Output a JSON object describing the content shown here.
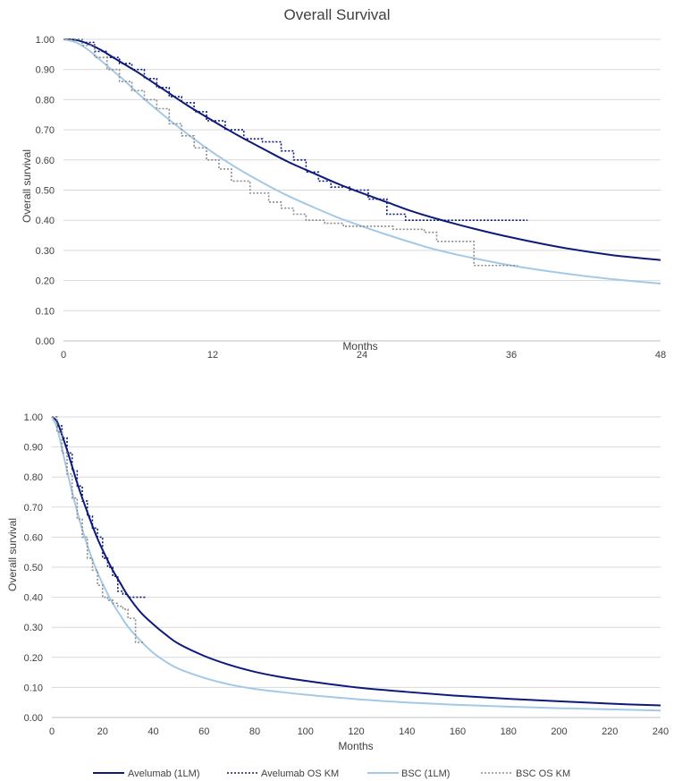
{
  "colors": {
    "avelumab": "#0d1a7a",
    "bsc_curve": "#a4c9e6",
    "bsc_km": "#8c8c8c"
  },
  "legend": {
    "items": [
      {
        "label": "Avelumab (1LM)",
        "style": "solid",
        "color": "#0d1a7a"
      },
      {
        "label": "Avelumab OS KM",
        "style": "dotted",
        "color": "#0d1a7a"
      },
      {
        "label": "BSC (1LM)",
        "style": "solid",
        "color": "#a4c9e6"
      },
      {
        "label": "BSC OS KM",
        "style": "dotted",
        "color": "#8c8c8c"
      }
    ]
  },
  "chart_data": [
    {
      "type": "line",
      "title": "Overall Survival",
      "xlabel": "Months",
      "ylabel": "Overall survival",
      "xlim": [
        0,
        48
      ],
      "ylim": [
        0,
        1
      ],
      "x_ticks": [
        "0",
        "12",
        "24",
        "36",
        "48"
      ],
      "x_tick_values": [
        0,
        12,
        24,
        36,
        48
      ],
      "y_ticks": [
        "0.00",
        "0.10",
        "0.20",
        "0.30",
        "0.40",
        "0.50",
        "0.60",
        "0.70",
        "0.80",
        "0.90",
        "1.00"
      ],
      "grid": true,
      "series": [
        {
          "name": "Avelumab (1LM)",
          "kind": "smooth",
          "x": [
            0,
            1,
            2,
            3,
            4,
            5,
            6,
            8,
            10,
            12,
            14,
            16,
            18,
            20,
            22,
            24,
            26,
            28,
            30,
            33,
            36,
            40,
            44,
            48
          ],
          "y": [
            1.0,
            0.998,
            0.985,
            0.965,
            0.94,
            0.915,
            0.89,
            0.835,
            0.78,
            0.73,
            0.682,
            0.638,
            0.595,
            0.558,
            0.522,
            0.49,
            0.46,
            0.43,
            0.405,
            0.372,
            0.343,
            0.31,
            0.285,
            0.268
          ]
        },
        {
          "name": "Avelumab OS KM",
          "kind": "step",
          "x": [
            0,
            1.5,
            2.5,
            3.5,
            4.5,
            5.5,
            6.5,
            7.5,
            8.5,
            9.5,
            10.5,
            11.5,
            13,
            14.5,
            16,
            17.5,
            18.5,
            19.5,
            20.5,
            21.5,
            23,
            24.5,
            26,
            27.5,
            28.5,
            30,
            32,
            34,
            37.3
          ],
          "y": [
            1.0,
            0.99,
            0.96,
            0.94,
            0.92,
            0.9,
            0.87,
            0.84,
            0.81,
            0.79,
            0.76,
            0.73,
            0.7,
            0.67,
            0.66,
            0.63,
            0.6,
            0.56,
            0.53,
            0.51,
            0.5,
            0.47,
            0.42,
            0.4,
            0.4,
            0.4,
            0.4,
            0.4,
            0.4
          ]
        },
        {
          "name": "BSC (1LM)",
          "kind": "smooth",
          "x": [
            0,
            1,
            2,
            3,
            4,
            5,
            6,
            8,
            10,
            12,
            14,
            16,
            18,
            20,
            22,
            24,
            26,
            28,
            30,
            33,
            36,
            40,
            44,
            48
          ],
          "y": [
            1.0,
            0.99,
            0.965,
            0.93,
            0.895,
            0.86,
            0.82,
            0.75,
            0.685,
            0.625,
            0.572,
            0.525,
            0.482,
            0.445,
            0.41,
            0.38,
            0.352,
            0.326,
            0.302,
            0.274,
            0.25,
            0.225,
            0.205,
            0.19
          ]
        },
        {
          "name": "BSC OS KM",
          "kind": "step",
          "x": [
            0,
            1.5,
            2.5,
            3.5,
            4.5,
            5.5,
            6.5,
            7.5,
            8.5,
            9.5,
            10.5,
            11.5,
            12.5,
            13.5,
            15,
            16.5,
            17.5,
            18.5,
            19.5,
            21,
            22.5,
            26.5,
            29,
            30,
            33,
            36.5
          ],
          "y": [
            1.0,
            0.98,
            0.94,
            0.9,
            0.86,
            0.83,
            0.8,
            0.77,
            0.72,
            0.68,
            0.64,
            0.6,
            0.57,
            0.53,
            0.49,
            0.46,
            0.44,
            0.42,
            0.4,
            0.39,
            0.38,
            0.37,
            0.36,
            0.33,
            0.25,
            0.25
          ]
        }
      ]
    },
    {
      "type": "line",
      "title": "",
      "xlabel": "Months",
      "ylabel": "Overall survival",
      "xlim": [
        0,
        240
      ],
      "ylim": [
        0,
        1
      ],
      "x_ticks": [
        "0",
        "20",
        "40",
        "60",
        "80",
        "100",
        "120",
        "140",
        "160",
        "180",
        "200",
        "220",
        "240"
      ],
      "x_tick_values": [
        0,
        20,
        40,
        60,
        80,
        100,
        120,
        140,
        160,
        180,
        200,
        220,
        240
      ],
      "y_ticks": [
        "0.00",
        "0.10",
        "0.20",
        "0.30",
        "0.40",
        "0.50",
        "0.60",
        "0.70",
        "0.80",
        "0.90",
        "1.00"
      ],
      "grid": true,
      "series": [
        {
          "name": "Avelumab (1LM)",
          "kind": "smooth",
          "x": [
            0,
            2,
            4,
            6,
            8,
            10,
            12,
            15,
            18,
            21,
            24,
            27,
            30,
            35,
            40,
            45,
            50,
            60,
            70,
            80,
            90,
            100,
            120,
            140,
            160,
            180,
            200,
            220,
            240
          ],
          "y": [
            1.0,
            0.985,
            0.94,
            0.89,
            0.835,
            0.78,
            0.73,
            0.66,
            0.595,
            0.54,
            0.49,
            0.447,
            0.405,
            0.35,
            0.31,
            0.275,
            0.245,
            0.205,
            0.175,
            0.152,
            0.135,
            0.122,
            0.1,
            0.085,
            0.072,
            0.062,
            0.054,
            0.046,
            0.04
          ]
        },
        {
          "name": "Avelumab OS KM",
          "kind": "step",
          "x": [
            0,
            2,
            4,
            6,
            8,
            10,
            12,
            14,
            16,
            18,
            20,
            22,
            24,
            26,
            28,
            30,
            34,
            37.3
          ],
          "y": [
            1.0,
            0.97,
            0.93,
            0.88,
            0.82,
            0.77,
            0.72,
            0.67,
            0.63,
            0.6,
            0.53,
            0.5,
            0.47,
            0.42,
            0.41,
            0.4,
            0.4,
            0.4
          ]
        },
        {
          "name": "BSC (1LM)",
          "kind": "smooth",
          "x": [
            0,
            2,
            4,
            6,
            8,
            10,
            12,
            15,
            18,
            21,
            24,
            27,
            30,
            35,
            40,
            45,
            50,
            60,
            70,
            80,
            90,
            100,
            120,
            140,
            160,
            180,
            200,
            220,
            240
          ],
          "y": [
            1.0,
            0.965,
            0.895,
            0.82,
            0.75,
            0.685,
            0.625,
            0.548,
            0.482,
            0.428,
            0.38,
            0.34,
            0.302,
            0.255,
            0.215,
            0.185,
            0.162,
            0.132,
            0.11,
            0.095,
            0.085,
            0.076,
            0.061,
            0.05,
            0.042,
            0.036,
            0.031,
            0.027,
            0.023
          ]
        },
        {
          "name": "BSC OS KM",
          "kind": "step",
          "x": [
            0,
            2,
            4,
            6,
            8,
            10,
            12,
            14,
            16,
            18,
            20,
            22,
            24,
            26,
            28,
            30,
            33,
            36.5
          ],
          "y": [
            1.0,
            0.95,
            0.88,
            0.81,
            0.73,
            0.66,
            0.6,
            0.53,
            0.49,
            0.44,
            0.4,
            0.39,
            0.38,
            0.37,
            0.36,
            0.33,
            0.25,
            0.25
          ]
        }
      ]
    }
  ]
}
